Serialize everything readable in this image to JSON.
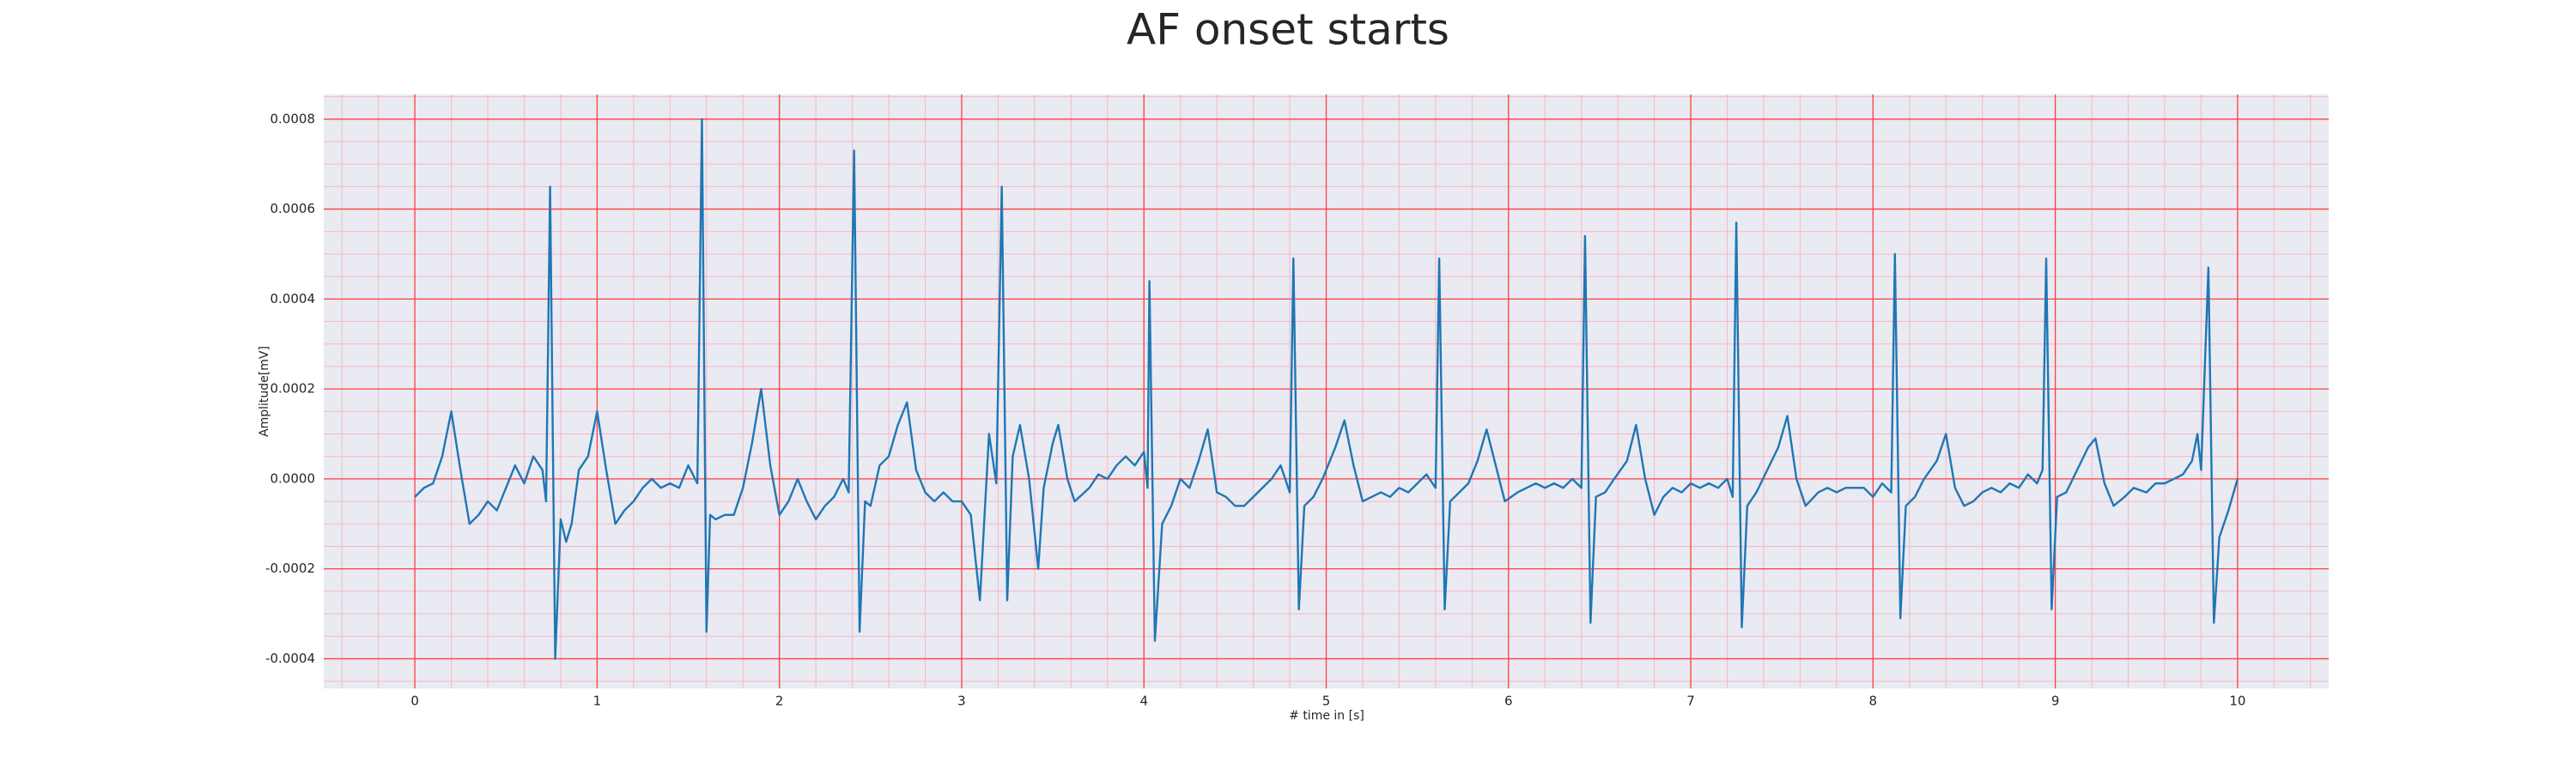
{
  "chart_data": {
    "type": "line",
    "title": "AF onset starts",
    "xlabel": "# time in [s]",
    "ylabel": "Amplitude[mV]",
    "xlim": [
      -0.5,
      10.5
    ],
    "ylim": [
      -0.000466,
      0.000855
    ],
    "xticks": [
      0,
      1,
      2,
      3,
      4,
      5,
      6,
      7,
      8,
      9,
      10
    ],
    "yticks": [
      -0.0004,
      -0.0002,
      {
        "value": 0,
        "label": "0.0000"
      },
      0.0002,
      0.0004,
      0.0006,
      0.0008
    ],
    "grid": true,
    "minor_grid": true,
    "background": "#eaeaf2",
    "grid_color": "#ff4040",
    "minor_grid_color": "#f4b8c4",
    "x": [
      0,
      0.05,
      0.1,
      0.15,
      0.2,
      0.25,
      0.3,
      0.35,
      0.4,
      0.45,
      0.5,
      0.55,
      0.6,
      0.65,
      0.7,
      0.72,
      0.742,
      0.77,
      0.8,
      0.83,
      0.86,
      0.9,
      0.95,
      1.0,
      1.05,
      1.1,
      1.15,
      1.2,
      1.25,
      1.3,
      1.35,
      1.4,
      1.45,
      1.5,
      1.55,
      1.575,
      1.6,
      1.62,
      1.65,
      1.7,
      1.75,
      1.8,
      1.85,
      1.9,
      1.95,
      2.0,
      2.05,
      2.1,
      2.15,
      2.2,
      2.25,
      2.3,
      2.35,
      2.38,
      2.41,
      2.44,
      2.47,
      2.5,
      2.55,
      2.6,
      2.65,
      2.7,
      2.75,
      2.8,
      2.85,
      2.9,
      2.95,
      3.0,
      3.05,
      3.1,
      3.15,
      3.19,
      3.22,
      3.25,
      3.28,
      3.32,
      3.37,
      3.42,
      3.45,
      3.5,
      3.53,
      3.58,
      3.62,
      3.7,
      3.75,
      3.8,
      3.85,
      3.9,
      3.95,
      4.0,
      4.02,
      4.03,
      4.06,
      4.1,
      4.15,
      4.2,
      4.25,
      4.3,
      4.35,
      4.4,
      4.45,
      4.5,
      4.55,
      4.6,
      4.65,
      4.7,
      4.75,
      4.8,
      4.82,
      4.85,
      4.88,
      4.93,
      4.98,
      5.05,
      5.1,
      5.15,
      5.2,
      5.25,
      5.3,
      5.35,
      5.4,
      5.45,
      5.5,
      5.55,
      5.6,
      5.62,
      5.65,
      5.68,
      5.73,
      5.78,
      5.83,
      5.88,
      5.93,
      5.98,
      6.05,
      6.1,
      6.15,
      6.2,
      6.25,
      6.3,
      6.35,
      6.4,
      6.42,
      6.45,
      6.48,
      6.53,
      6.58,
      6.65,
      6.7,
      6.75,
      6.8,
      6.85,
      6.9,
      6.95,
      7.0,
      7.05,
      7.1,
      7.15,
      7.2,
      7.23,
      7.25,
      7.28,
      7.31,
      7.36,
      7.42,
      7.48,
      7.53,
      7.58,
      7.63,
      7.7,
      7.75,
      7.8,
      7.85,
      7.9,
      7.95,
      8.0,
      8.05,
      8.1,
      8.12,
      8.15,
      8.18,
      8.23,
      8.28,
      8.35,
      8.4,
      8.45,
      8.5,
      8.55,
      8.6,
      8.65,
      8.7,
      8.75,
      8.8,
      8.85,
      8.9,
      8.93,
      8.95,
      8.98,
      9.01,
      9.06,
      9.12,
      9.18,
      9.22,
      9.27,
      9.32,
      9.38,
      9.43,
      9.5,
      9.55,
      9.6,
      9.65,
      9.7,
      9.75,
      9.78,
      9.8,
      9.84,
      9.87,
      9.9,
      9.95,
      10.0
    ],
    "series": [
      {
        "color": "#1f77b4",
        "values": [
          -4e-05,
          -2e-05,
          -1e-05,
          5e-05,
          0.00015,
          2e-05,
          -0.0001,
          -8e-05,
          -5e-05,
          -7e-05,
          -2e-05,
          3e-05,
          -1e-05,
          5e-05,
          2e-05,
          -5e-05,
          0.00065,
          -0.0004,
          -9e-05,
          -0.00014,
          -0.0001,
          2e-05,
          5e-05,
          0.00015,
          2e-05,
          -0.0001,
          -7e-05,
          -5e-05,
          -2e-05,
          0,
          -2e-05,
          -1e-05,
          -2e-05,
          3e-05,
          -1e-05,
          0.0008,
          -0.00034,
          -8e-05,
          -9e-05,
          -8e-05,
          -8e-05,
          -2e-05,
          8e-05,
          0.0002,
          3e-05,
          -8e-05,
          -5e-05,
          0,
          -5e-05,
          -9e-05,
          -6e-05,
          -4e-05,
          0,
          -3e-05,
          0.00073,
          -0.00034,
          -5e-05,
          -6e-05,
          3e-05,
          5e-05,
          0.00012,
          0.00017,
          2e-05,
          -3e-05,
          -5e-05,
          -3e-05,
          -5e-05,
          -5e-05,
          -8e-05,
          -0.00027,
          0.0001,
          -1e-05,
          0.00065,
          -0.00027,
          5e-05,
          0.00012,
          0,
          -0.0002,
          -2e-05,
          8e-05,
          0.00012,
          0,
          -5e-05,
          -2e-05,
          1e-05,
          0,
          3e-05,
          5e-05,
          3e-05,
          6e-05,
          -2e-05,
          0.00044,
          -0.00036,
          -0.0001,
          -6e-05,
          0,
          -2e-05,
          4e-05,
          0.00011,
          -3e-05,
          -4e-05,
          -6e-05,
          -6e-05,
          -4e-05,
          -2e-05,
          0,
          3e-05,
          -3e-05,
          0.00049,
          -0.00029,
          -6e-05,
          -4e-05,
          0,
          7e-05,
          0.00013,
          3e-05,
          -5e-05,
          -4e-05,
          -3e-05,
          -4e-05,
          -2e-05,
          -3e-05,
          -1e-05,
          1e-05,
          -2e-05,
          0.00049,
          -0.00029,
          -5e-05,
          -3e-05,
          -1e-05,
          4e-05,
          0.00011,
          3e-05,
          -5e-05,
          -3e-05,
          -2e-05,
          -1e-05,
          -2e-05,
          -1e-05,
          -2e-05,
          0,
          -2e-05,
          0.00054,
          -0.00032,
          -4e-05,
          -3e-05,
          0,
          4e-05,
          0.00012,
          0,
          -8e-05,
          -4e-05,
          -2e-05,
          -3e-05,
          -1e-05,
          -2e-05,
          -1e-05,
          -2e-05,
          0,
          -4e-05,
          0.00057,
          -0.00033,
          -6e-05,
          -3e-05,
          2e-05,
          7e-05,
          0.00014,
          0,
          -6e-05,
          -3e-05,
          -2e-05,
          -3e-05,
          -2e-05,
          -2e-05,
          -2e-05,
          -4e-05,
          -1e-05,
          -3e-05,
          0.0005,
          -0.00031,
          -6e-05,
          -4e-05,
          0,
          4e-05,
          0.0001,
          -2e-05,
          -6e-05,
          -5e-05,
          -3e-05,
          -2e-05,
          -3e-05,
          -1e-05,
          -2e-05,
          1e-05,
          -1e-05,
          2e-05,
          0.00049,
          -0.00029,
          -4e-05,
          -3e-05,
          2e-05,
          7e-05,
          9e-05,
          -1e-05,
          -6e-05,
          -4e-05,
          -2e-05,
          -3e-05,
          -1e-05,
          -1e-05,
          0,
          1e-05,
          4e-05,
          0.0001,
          2e-05,
          0.00047,
          -0.00032,
          -0.00013,
          -7e-05,
          0
        ]
      }
    ]
  }
}
